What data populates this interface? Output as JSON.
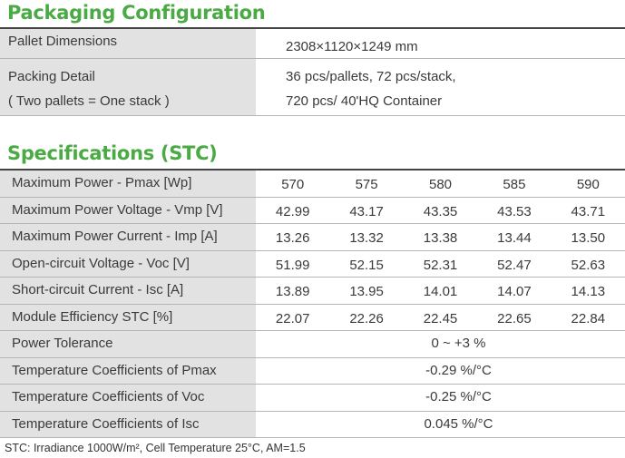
{
  "packaging": {
    "title": "Packaging Configuration",
    "rows": [
      {
        "label": "Pallet Dimensions",
        "value": "2308×1120×1249 mm"
      },
      {
        "label_lines": [
          "Packing Detail",
          "( Two pallets = One stack )"
        ],
        "value_lines": [
          "36 pcs/pallets, 72 pcs/stack,",
          "720 pcs/ 40'HQ Container"
        ]
      }
    ]
  },
  "specs": {
    "title": "Specifications (STC)",
    "rows": [
      {
        "label": "Maximum Power - Pmax [Wp]",
        "values": [
          "570",
          "575",
          "580",
          "585",
          "590"
        ]
      },
      {
        "label": "Maximum Power Voltage - Vmp [V]",
        "values": [
          "42.99",
          "43.17",
          "43.35",
          "43.53",
          "43.71"
        ]
      },
      {
        "label": "Maximum Power Current - Imp [A]",
        "values": [
          "13.26",
          "13.32",
          "13.38",
          "13.44",
          "13.50"
        ]
      },
      {
        "label": "Open-circuit Voltage - Voc [V]",
        "values": [
          "51.99",
          "52.15",
          "52.31",
          "52.47",
          "52.63"
        ]
      },
      {
        "label": "Short-circuit Current - Isc [A]",
        "values": [
          "13.89",
          "13.95",
          "14.01",
          "14.07",
          "14.13"
        ]
      },
      {
        "label": "Module Efficiency STC [%]",
        "values": [
          "22.07",
          "22.26",
          "22.45",
          "22.65",
          "22.84"
        ]
      },
      {
        "label": "Power Tolerance",
        "value": "0 ~ +3 %"
      },
      {
        "label": "Temperature Coefficients of Pmax",
        "value": "-0.29 %/°C"
      },
      {
        "label": "Temperature Coefficients of Voc",
        "value": "-0.25 %/°C"
      },
      {
        "label": "Temperature Coefficients of Isc",
        "value": "0.045 %/°C"
      }
    ]
  },
  "footnote": "STC: Irradiance 1000W/m², Cell Temperature 25°C, AM=1.5",
  "colors": {
    "title_green": "#4aab44",
    "label_background": "#e2e2e2",
    "rule": "#444444"
  }
}
